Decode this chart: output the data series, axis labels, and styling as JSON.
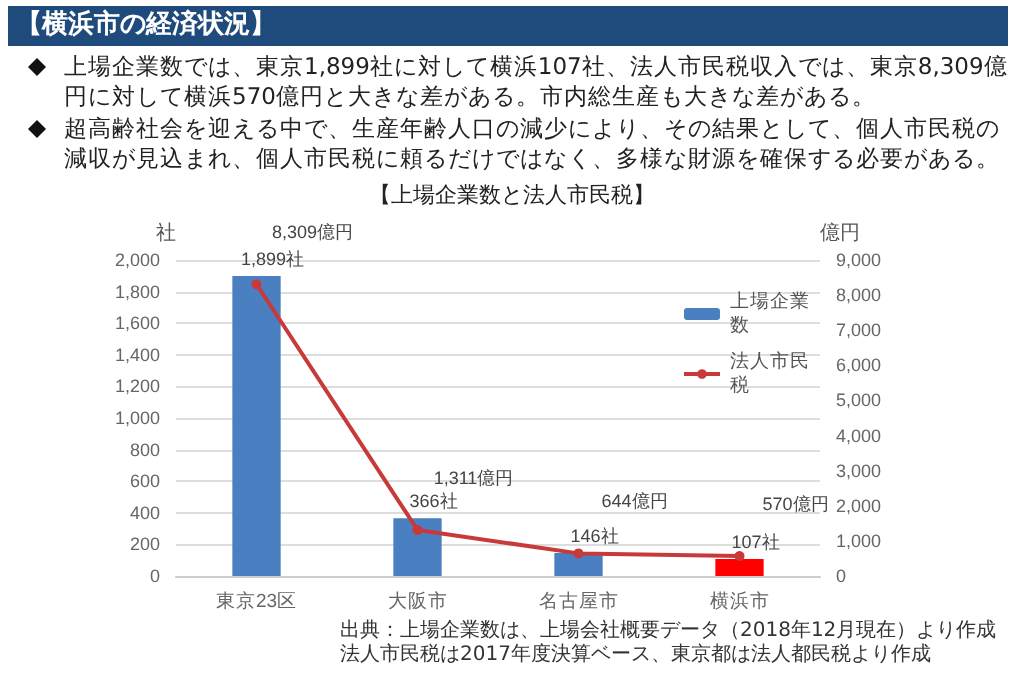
{
  "chart_data": {
    "type": "bar",
    "title": "【横浜市の経済状況】",
    "subtitle": "【上場企業数と法人市民税】",
    "annotations": [
      "上場企業数では、東京1,899社に対して横浜107社、法人市民税収入では、東京8,309億円に対して横浜570億円と大きな差がある。市内総生産も大きな差がある。",
      "超高齢社会を迎える中で、生産年齢人口の減少により、その結果として、個人市民税の減収が見込まれ、個人市民税に頼るだけではなく、多様な財源を確保する必要がある。",
      "出典：上場企業数は、上場会社概要データ（2018年12月現在）より作成",
      "法人市民税は2017年度決算ベース、東京都は法人都民税より作成"
    ],
    "ylabel": "社",
    "y2label": "億円",
    "categories": [
      "東京23区",
      "大阪市",
      "名古屋市",
      "横浜市"
    ],
    "series": [
      {
        "name": "上場企業数",
        "color": "#4a7fc1",
        "colors": [
          "#4a7fc1",
          "#4a7fc1",
          "#4a7fc1",
          "#ff0000"
        ],
        "values": [
          1899,
          366,
          146,
          107
        ],
        "value_labels": [
          "1,899社",
          "366社",
          "146社",
          "107社"
        ]
      },
      {
        "name": "法人市民税",
        "type": "line",
        "axis": "y2",
        "color": "#c83a3a",
        "values": [
          8309,
          1311,
          644,
          570
        ],
        "value_labels": [
          "8,309億円",
          "1,311億円",
          "644億円",
          "570億円"
        ]
      }
    ],
    "ylim": [
      0,
      2000
    ],
    "yticks": [
      {
        "value": 0,
        "label": "0"
      },
      {
        "value": 200,
        "label": "200"
      },
      {
        "value": 400,
        "label": "400"
      },
      {
        "value": 600,
        "label": "600"
      },
      {
        "value": 800,
        "label": "800"
      },
      {
        "value": 1000,
        "label": "1,000"
      },
      {
        "value": 1200,
        "label": "1,200"
      },
      {
        "value": 1400,
        "label": "1,400"
      },
      {
        "value": 1600,
        "label": "1,600"
      },
      {
        "value": 1800,
        "label": "1,800"
      },
      {
        "value": 2000,
        "label": "2,000"
      }
    ],
    "y2lim": [
      0,
      9000
    ],
    "y2ticks": [
      {
        "value": 0,
        "label": "0"
      },
      {
        "value": 1000,
        "label": "1,000"
      },
      {
        "value": 2000,
        "label": "2,000"
      },
      {
        "value": 3000,
        "label": "3,000"
      },
      {
        "value": 4000,
        "label": "4,000"
      },
      {
        "value": 5000,
        "label": "5,000"
      },
      {
        "value": 6000,
        "label": "6,000"
      },
      {
        "value": 7000,
        "label": "7,000"
      },
      {
        "value": 8000,
        "label": "8,000"
      },
      {
        "value": 9000,
        "label": "9,000"
      }
    ],
    "grid": "y",
    "legend": "top right",
    "marker": "circle",
    "line_style": "solid"
  }
}
